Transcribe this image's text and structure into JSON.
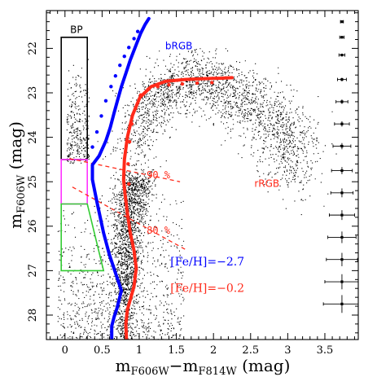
{
  "chart_data": {
    "type": "scatter",
    "xlabel": "m",
    "xlabel_sub_1": "F606W",
    "xlabel_mid": "−m",
    "xlabel_sub_2": "F814W",
    "xlabel_unit": " (mag)",
    "ylabel": "m",
    "ylabel_sub": "F606W",
    "ylabel_unit": " (mag)",
    "xlim": [
      -0.25,
      3.95
    ],
    "ylim": [
      28.55,
      21.15
    ],
    "y_inverted": true,
    "x_ticks": [
      0,
      0.5,
      1,
      1.5,
      2,
      2.5,
      3,
      3.5
    ],
    "x_tick_labels": [
      "0",
      "0.5",
      "1",
      "1.5",
      "2",
      "2.5",
      "3",
      "3.5"
    ],
    "y_ticks": [
      22,
      23,
      24,
      25,
      26,
      27,
      28
    ],
    "y_tick_labels": [
      "22",
      "23",
      "24",
      "25",
      "26",
      "27",
      "28"
    ],
    "grid": false,
    "colors": {
      "blue": "#0000ff",
      "red": "#ff2a1a",
      "magenta": "#ff33ff",
      "green": "#33cc33",
      "black": "#000000",
      "points": "#000000"
    },
    "annotations": [
      {
        "text": "BP",
        "x": 0.07,
        "y": 21.65,
        "color": "#000000"
      },
      {
        "text": "bRGB",
        "x": 1.35,
        "y": 22.02,
        "color": "#0000ff"
      },
      {
        "text": "rRGB",
        "x": 2.55,
        "y": 25.12,
        "color": "#ff2a1a"
      },
      {
        "text": "90 %",
        "x": 1.1,
        "y": 24.92,
        "color": "#ff2a1a"
      },
      {
        "text": "80 %",
        "x": 1.1,
        "y": 26.17,
        "color": "#ff2a1a"
      },
      {
        "text": "[Fe/H]=−2.7",
        "x": 1.42,
        "y": 26.88,
        "color": "#0000ff"
      },
      {
        "text": "[Fe/H]=−0.2",
        "x": 1.42,
        "y": 27.48,
        "color": "#ff2a1a"
      }
    ],
    "isochrones": [
      {
        "name": "[Fe/H]=−2.7",
        "color": "#0000ff",
        "x": [
          0.63,
          0.63,
          0.66,
          0.7,
          0.76,
          0.68,
          0.6,
          0.52,
          0.43,
          0.37,
          0.37,
          0.46,
          0.55,
          0.61,
          0.66,
          0.71,
          0.76,
          0.82,
          0.88,
          0.95,
          1.02,
          1.08,
          1.13
        ],
        "y": [
          28.65,
          28.25,
          28.05,
          27.85,
          27.45,
          27.05,
          26.65,
          26.15,
          25.45,
          24.95,
          24.62,
          24.42,
          24.08,
          23.78,
          23.46,
          23.16,
          22.86,
          22.56,
          22.26,
          21.96,
          21.66,
          21.46,
          21.33
        ]
      },
      {
        "name": "[Fe/H]=−0.2",
        "color": "#ff2a1a",
        "x": [
          0.83,
          0.82,
          0.84,
          0.88,
          0.93,
          0.96,
          0.93,
          0.88,
          0.84,
          0.81,
          0.79,
          0.8,
          0.84,
          0.91,
          1.01,
          1.16,
          1.36,
          1.62,
          1.9,
          2.12,
          2.25
        ],
        "y": [
          28.65,
          28.2,
          27.88,
          27.65,
          27.35,
          26.95,
          26.55,
          26.15,
          25.7,
          25.3,
          24.95,
          24.5,
          24.0,
          23.5,
          23.1,
          22.86,
          22.74,
          22.7,
          22.68,
          22.67,
          22.66
        ]
      }
    ],
    "data_points_blue": {
      "x": [
        0.37,
        0.43,
        0.49,
        0.55,
        0.62,
        0.68,
        0.74,
        0.8,
        0.86,
        0.93,
        0.98
      ],
      "y": [
        24.22,
        23.88,
        23.52,
        23.18,
        22.86,
        22.62,
        22.38,
        22.18,
        21.98,
        21.78,
        21.62
      ]
    },
    "data_points_red": {
      "x": [
        0.86,
        0.85,
        0.87,
        0.9,
        0.95,
        1.02,
        1.12,
        1.25,
        1.4,
        1.58,
        1.78,
        1.98
      ],
      "y": [
        25.05,
        24.6,
        24.1,
        23.7,
        23.35,
        23.05,
        22.92,
        22.86,
        22.82,
        22.8,
        22.78,
        22.77
      ]
    },
    "regions": [
      {
        "label": "BP",
        "color": "#000000",
        "x": [
          -0.05,
          0.3,
          0.3,
          -0.05
        ],
        "y": [
          21.75,
          21.75,
          24.5,
          24.5
        ]
      },
      {
        "label": "",
        "color": "#ff33ff",
        "x": [
          -0.05,
          0.3,
          0.3,
          -0.05
        ],
        "y": [
          24.5,
          24.5,
          25.5,
          25.5
        ]
      },
      {
        "label": "",
        "color": "#33cc33",
        "x": [
          -0.05,
          0.3,
          0.52,
          -0.05
        ],
        "y": [
          25.5,
          25.5,
          27.0,
          27.0
        ]
      }
    ],
    "completeness_lines": [
      {
        "label": "90 %",
        "x": [
          0.06,
          1.55
        ],
        "y": [
          24.48,
          25.0
        ]
      },
      {
        "label": "80 %",
        "x": [
          0.1,
          1.65
        ],
        "y": [
          25.12,
          26.55
        ]
      }
    ],
    "error_bars": {
      "x": 3.73,
      "y": [
        21.4,
        21.75,
        22.15,
        22.7,
        23.2,
        23.7,
        24.2,
        24.75,
        25.25,
        25.75,
        26.25,
        26.75,
        27.25,
        27.75
      ],
      "xerr": [
        0.02,
        0.03,
        0.04,
        0.06,
        0.08,
        0.1,
        0.12,
        0.14,
        0.15,
        0.17,
        0.19,
        0.21,
        0.23,
        0.25
      ],
      "yerr": [
        0.02,
        0.03,
        0.03,
        0.04,
        0.05,
        0.06,
        0.07,
        0.08,
        0.1,
        0.11,
        0.13,
        0.15,
        0.17,
        0.2
      ]
    },
    "point_density_components": [
      {
        "kind": "main_sequence_ridge",
        "x": [
          0.78,
          0.8,
          0.82,
          0.85,
          0.9,
          0.95
        ],
        "y": [
          28.55,
          27.6,
          26.8,
          26.0,
          25.4,
          24.9
        ],
        "x_spread": 0.11,
        "weight": 0.34
      },
      {
        "kind": "red_giant_cloud",
        "x": [
          0.9,
          1.1,
          1.35,
          1.65,
          1.95,
          2.25,
          2.55,
          2.85,
          3.05,
          3.15
        ],
        "y": [
          24.4,
          23.4,
          22.9,
          22.7,
          22.8,
          23.0,
          23.3,
          23.75,
          24.2,
          24.6
        ],
        "x_spread": 0.18,
        "y_spread": 0.45,
        "weight": 0.42
      },
      {
        "kind": "blue_plume",
        "x": [
          0.02,
          0.32
        ],
        "y": [
          22.1,
          24.6
        ],
        "weight": 0.06
      },
      {
        "kind": "faint_field",
        "x": [
          -0.1,
          1.6
        ],
        "y": [
          25.2,
          28.55
        ],
        "weight": 0.18
      }
    ]
  }
}
